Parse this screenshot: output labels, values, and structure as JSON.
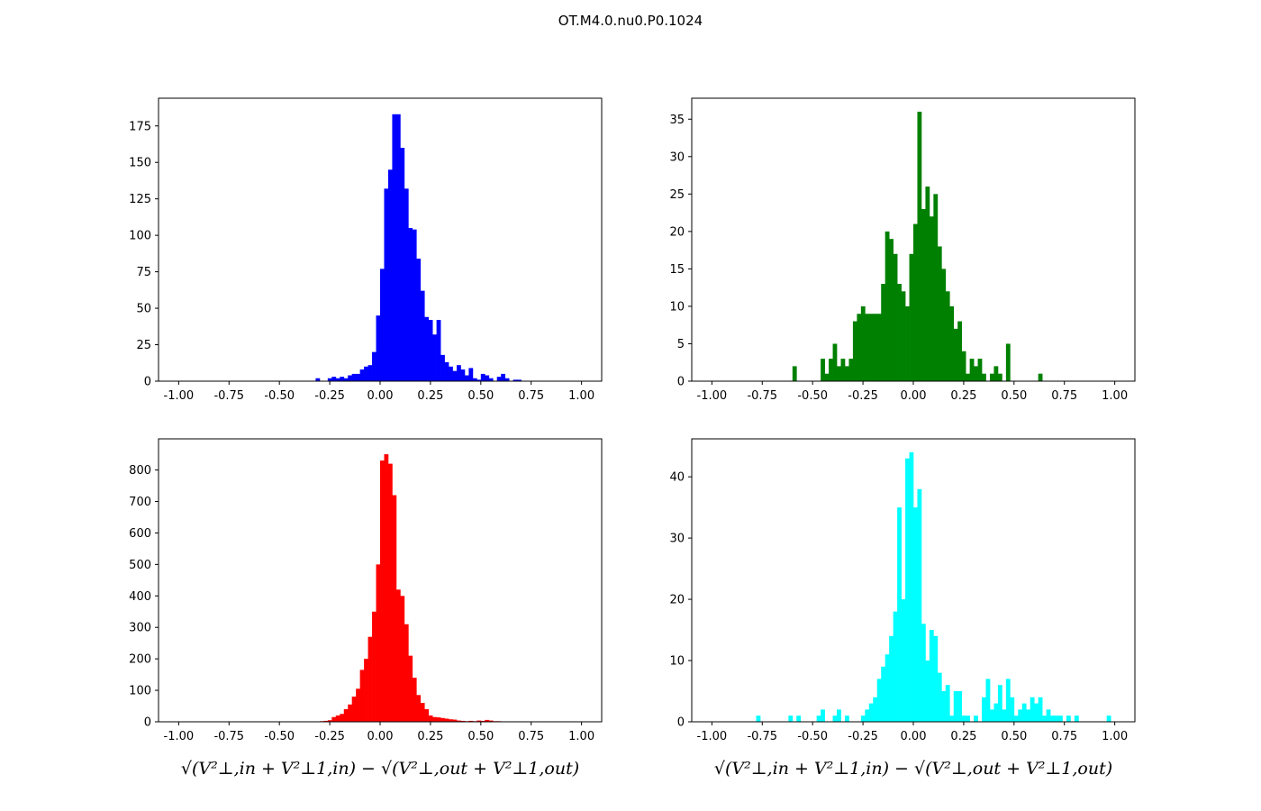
{
  "figure": {
    "title": "OT.M4.0.nu0.P0.1024"
  },
  "chart_data": [
    {
      "type": "bar",
      "position": "top-left",
      "color": "#0000ff",
      "xlim": [
        -1.1,
        1.1
      ],
      "ylim": [
        0,
        194
      ],
      "bin_width": 0.02,
      "xticks": [
        "-1.00",
        "-0.75",
        "-0.50",
        "-0.25",
        "0.00",
        "0.25",
        "0.50",
        "0.75",
        "1.00"
      ],
      "yticks": [
        "0",
        "25",
        "50",
        "75",
        "100",
        "125",
        "150",
        "175"
      ],
      "xlabel": "",
      "bins": [
        [
          -0.32,
          2
        ],
        [
          -0.26,
          2
        ],
        [
          -0.24,
          3
        ],
        [
          -0.22,
          2
        ],
        [
          -0.2,
          3
        ],
        [
          -0.18,
          2
        ],
        [
          -0.16,
          4
        ],
        [
          -0.14,
          5
        ],
        [
          -0.12,
          5
        ],
        [
          -0.1,
          8
        ],
        [
          -0.08,
          10
        ],
        [
          -0.06,
          11
        ],
        [
          -0.04,
          20
        ],
        [
          -0.02,
          45
        ],
        [
          0.0,
          77
        ],
        [
          0.02,
          132
        ],
        [
          0.04,
          145
        ],
        [
          0.06,
          183
        ],
        [
          0.08,
          183
        ],
        [
          0.1,
          160
        ],
        [
          0.12,
          132
        ],
        [
          0.14,
          105
        ],
        [
          0.16,
          104
        ],
        [
          0.18,
          84
        ],
        [
          0.2,
          62
        ],
        [
          0.22,
          44
        ],
        [
          0.24,
          42
        ],
        [
          0.26,
          32
        ],
        [
          0.28,
          42
        ],
        [
          0.3,
          18
        ],
        [
          0.32,
          13
        ],
        [
          0.34,
          10
        ],
        [
          0.36,
          7
        ],
        [
          0.38,
          11
        ],
        [
          0.4,
          8
        ],
        [
          0.42,
          4
        ],
        [
          0.44,
          9
        ],
        [
          0.46,
          2
        ],
        [
          0.48,
          1
        ],
        [
          0.5,
          5
        ],
        [
          0.52,
          4
        ],
        [
          0.54,
          2
        ],
        [
          0.58,
          3
        ],
        [
          0.6,
          5
        ],
        [
          0.62,
          2
        ],
        [
          0.66,
          1
        ],
        [
          0.68,
          1
        ]
      ]
    },
    {
      "type": "bar",
      "position": "top-right",
      "color": "#008000",
      "xlim": [
        -1.1,
        1.1
      ],
      "ylim": [
        0,
        37.8
      ],
      "bin_width": 0.02,
      "xticks": [
        "-1.00",
        "-0.75",
        "-0.50",
        "-0.25",
        "0.00",
        "0.25",
        "0.50",
        "0.75",
        "1.00"
      ],
      "yticks": [
        "0",
        "5",
        "10",
        "15",
        "20",
        "25",
        "30",
        "35"
      ],
      "xlabel": "",
      "bins": [
        [
          -0.6,
          2
        ],
        [
          -0.46,
          3
        ],
        [
          -0.44,
          1
        ],
        [
          -0.42,
          3
        ],
        [
          -0.4,
          5
        ],
        [
          -0.38,
          2
        ],
        [
          -0.36,
          3
        ],
        [
          -0.34,
          2
        ],
        [
          -0.32,
          3
        ],
        [
          -0.3,
          8
        ],
        [
          -0.28,
          9
        ],
        [
          -0.26,
          10
        ],
        [
          -0.24,
          9
        ],
        [
          -0.22,
          9
        ],
        [
          -0.2,
          9
        ],
        [
          -0.18,
          9
        ],
        [
          -0.16,
          13
        ],
        [
          -0.14,
          20
        ],
        [
          -0.12,
          19
        ],
        [
          -0.1,
          17
        ],
        [
          -0.08,
          13
        ],
        [
          -0.06,
          12
        ],
        [
          -0.04,
          10
        ],
        [
          -0.02,
          17
        ],
        [
          0.0,
          21
        ],
        [
          0.02,
          36
        ],
        [
          0.04,
          23
        ],
        [
          0.06,
          26
        ],
        [
          0.08,
          22
        ],
        [
          0.1,
          25
        ],
        [
          0.12,
          18
        ],
        [
          0.14,
          15
        ],
        [
          0.16,
          12
        ],
        [
          0.18,
          10
        ],
        [
          0.2,
          7
        ],
        [
          0.22,
          8
        ],
        [
          0.24,
          4
        ],
        [
          0.26,
          1
        ],
        [
          0.28,
          3
        ],
        [
          0.3,
          2
        ],
        [
          0.32,
          3
        ],
        [
          0.34,
          1
        ],
        [
          0.38,
          1
        ],
        [
          0.4,
          2
        ],
        [
          0.42,
          1
        ],
        [
          0.46,
          5
        ],
        [
          0.62,
          1
        ]
      ]
    },
    {
      "type": "bar",
      "position": "bottom-left",
      "color": "#ff0000",
      "xlim": [
        -1.1,
        1.1
      ],
      "ylim": [
        0,
        899
      ],
      "bin_width": 0.02,
      "xticks": [
        "-1.00",
        "-0.75",
        "-0.50",
        "-0.25",
        "0.00",
        "0.25",
        "0.50",
        "0.75",
        "1.00"
      ],
      "yticks": [
        "0",
        "100",
        "200",
        "300",
        "400",
        "500",
        "600",
        "700",
        "800"
      ],
      "xlabel": "√(V²⊥,in + V²⊥1,in) − √(V²⊥,out + V²⊥1,out)",
      "bins": [
        [
          -0.3,
          2
        ],
        [
          -0.28,
          3
        ],
        [
          -0.26,
          5
        ],
        [
          -0.24,
          15
        ],
        [
          -0.22,
          20
        ],
        [
          -0.2,
          25
        ],
        [
          -0.18,
          40
        ],
        [
          -0.16,
          55
        ],
        [
          -0.14,
          80
        ],
        [
          -0.12,
          105
        ],
        [
          -0.1,
          165
        ],
        [
          -0.08,
          200
        ],
        [
          -0.06,
          270
        ],
        [
          -0.04,
          350
        ],
        [
          -0.02,
          500
        ],
        [
          0.0,
          830
        ],
        [
          0.02,
          850
        ],
        [
          0.04,
          820
        ],
        [
          0.06,
          720
        ],
        [
          0.08,
          420
        ],
        [
          0.1,
          400
        ],
        [
          0.12,
          310
        ],
        [
          0.14,
          210
        ],
        [
          0.16,
          140
        ],
        [
          0.18,
          85
        ],
        [
          0.2,
          60
        ],
        [
          0.22,
          40
        ],
        [
          0.24,
          20
        ],
        [
          0.26,
          15
        ],
        [
          0.28,
          14
        ],
        [
          0.3,
          12
        ],
        [
          0.32,
          10
        ],
        [
          0.34,
          8
        ],
        [
          0.36,
          7
        ],
        [
          0.38,
          4
        ],
        [
          0.4,
          3
        ],
        [
          0.42,
          2
        ],
        [
          0.44,
          3
        ],
        [
          0.46,
          2
        ],
        [
          0.48,
          4
        ],
        [
          0.5,
          3
        ],
        [
          0.52,
          6
        ],
        [
          0.54,
          4
        ],
        [
          0.56,
          2
        ],
        [
          0.58,
          2
        ],
        [
          0.6,
          1
        ]
      ]
    },
    {
      "type": "bar",
      "position": "bottom-right",
      "color": "#00ffff",
      "xlim": [
        -1.1,
        1.1
      ],
      "ylim": [
        0,
        46.2
      ],
      "bin_width": 0.02,
      "xticks": [
        "-1.00",
        "-0.75",
        "-0.50",
        "-0.25",
        "0.00",
        "0.25",
        "0.50",
        "0.75",
        "1.00"
      ],
      "yticks": [
        "0",
        "10",
        "20",
        "30",
        "40"
      ],
      "xlabel": "√(V²⊥,in + V²⊥1,in) − √(V²⊥,out + V²⊥1,out)",
      "bins": [
        [
          -0.78,
          1
        ],
        [
          -0.62,
          1
        ],
        [
          -0.58,
          1
        ],
        [
          -0.48,
          1
        ],
        [
          -0.46,
          2
        ],
        [
          -0.4,
          1
        ],
        [
          -0.38,
          2
        ],
        [
          -0.34,
          1
        ],
        [
          -0.26,
          1
        ],
        [
          -0.24,
          2
        ],
        [
          -0.22,
          3
        ],
        [
          -0.2,
          4
        ],
        [
          -0.18,
          7
        ],
        [
          -0.16,
          9
        ],
        [
          -0.14,
          11
        ],
        [
          -0.12,
          14
        ],
        [
          -0.1,
          18
        ],
        [
          -0.08,
          35
        ],
        [
          -0.06,
          20
        ],
        [
          -0.04,
          43
        ],
        [
          -0.02,
          44
        ],
        [
          0.0,
          35
        ],
        [
          0.02,
          38
        ],
        [
          0.04,
          16
        ],
        [
          0.06,
          10
        ],
        [
          0.08,
          15
        ],
        [
          0.1,
          14
        ],
        [
          0.12,
          8
        ],
        [
          0.14,
          5
        ],
        [
          0.16,
          6
        ],
        [
          0.18,
          1
        ],
        [
          0.2,
          5
        ],
        [
          0.22,
          5
        ],
        [
          0.24,
          1
        ],
        [
          0.26,
          1
        ],
        [
          0.3,
          1
        ],
        [
          0.34,
          4
        ],
        [
          0.36,
          7
        ],
        [
          0.38,
          2
        ],
        [
          0.4,
          3
        ],
        [
          0.42,
          6
        ],
        [
          0.44,
          2
        ],
        [
          0.46,
          7
        ],
        [
          0.48,
          4
        ],
        [
          0.5,
          1
        ],
        [
          0.52,
          2
        ],
        [
          0.54,
          3
        ],
        [
          0.56,
          2
        ],
        [
          0.58,
          4
        ],
        [
          0.6,
          3
        ],
        [
          0.62,
          4
        ],
        [
          0.64,
          1
        ],
        [
          0.66,
          2
        ],
        [
          0.68,
          1
        ],
        [
          0.7,
          1
        ],
        [
          0.72,
          1
        ],
        [
          0.76,
          1
        ],
        [
          0.8,
          1
        ],
        [
          0.96,
          1
        ]
      ]
    }
  ]
}
